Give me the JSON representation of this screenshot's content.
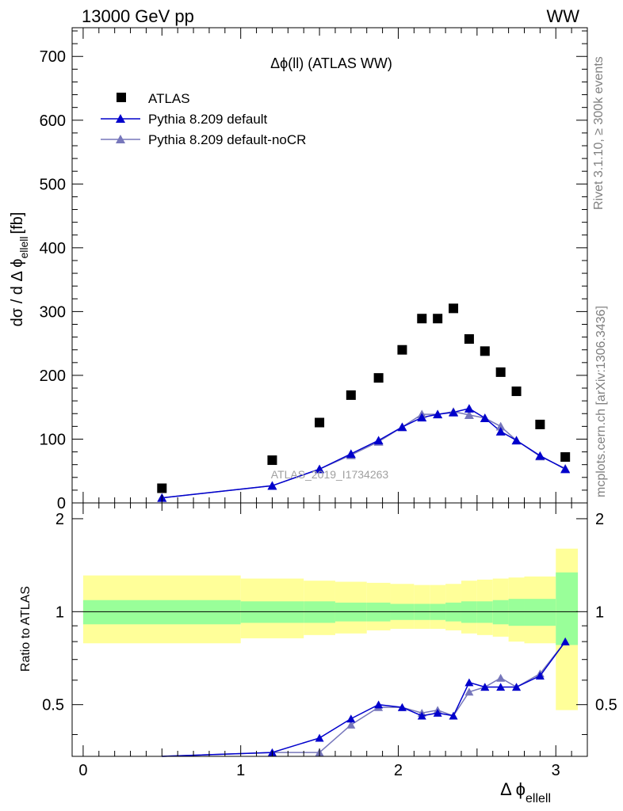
{
  "header": {
    "energy_label": "13000 GeV pp",
    "process_label": "WW",
    "side_label_top": "Rivet 3.1.10, ≥ 300k events",
    "side_label_bottom": "mcplots.cern.ch [arXiv:1306.3436]"
  },
  "colors": {
    "data": "#000000",
    "mc_default": "#0000cc",
    "mc_nocr": "#7777bb",
    "band_inner": "#99ff99",
    "band_outer": "#ffff99"
  },
  "chart_data": [
    {
      "type": "scatter",
      "title": "Δϕ(ll) (ATLAS WW)",
      "ylabel": "dσ / d Δ ϕ",
      "ylabel_sub": "ellell",
      "ylabel_unit": "[fb]",
      "xlim": [
        -0.07,
        3.2
      ],
      "ylim": [
        0,
        745
      ],
      "yticks": [
        0,
        100,
        200,
        300,
        400,
        500,
        600,
        700
      ],
      "watermark": "ATLAS_2019_I1734263",
      "legend_position": "top-left",
      "x": [
        0.5,
        1.2,
        1.5,
        1.7,
        1.875,
        2.025,
        2.15,
        2.25,
        2.35,
        2.45,
        2.55,
        2.65,
        2.75,
        2.9,
        3.06
      ],
      "series": [
        {
          "name": "ATLAS",
          "marker": "square",
          "values": [
            23,
            67,
            126,
            169,
            196,
            240,
            289,
            289,
            305,
            257,
            238,
            205,
            175,
            123,
            72
          ]
        },
        {
          "name": "Pythia 8.209 default",
          "marker": "triangle",
          "values": [
            8,
            27,
            53,
            77,
            98,
            119,
            134,
            139,
            142,
            148,
            133,
            112,
            98,
            74,
            53
          ]
        },
        {
          "name": "Pythia 8.209 default-noCR",
          "marker": "triangle",
          "values": [
            8,
            27,
            53,
            75,
            96,
            119,
            139,
            139,
            143,
            138,
            133,
            120,
            98,
            73,
            54
          ]
        }
      ]
    },
    {
      "type": "line",
      "ylabel": "Ratio to ATLAS",
      "xlabel": "Δ ϕ",
      "xlabel_sub": "ellell",
      "xlim": [
        -0.07,
        3.2
      ],
      "ylim": [
        0.34,
        2.25
      ],
      "xticks": [
        0,
        1,
        2,
        3
      ],
      "yticks": [
        0.5,
        1,
        2
      ],
      "bins": [
        [
          0,
          1
        ],
        [
          1,
          1.4
        ],
        [
          1.4,
          1.6
        ],
        [
          1.6,
          1.8
        ],
        [
          1.8,
          1.95
        ],
        [
          1.95,
          2.1
        ],
        [
          2.1,
          2.2
        ],
        [
          2.2,
          2.3
        ],
        [
          2.3,
          2.4
        ],
        [
          2.4,
          2.5
        ],
        [
          2.5,
          2.6
        ],
        [
          2.6,
          2.7
        ],
        [
          2.7,
          2.8
        ],
        [
          2.8,
          3.0
        ],
        [
          3.0,
          3.14
        ]
      ],
      "band_inner": [
        [
          0.91,
          1.09
        ],
        [
          0.92,
          1.08
        ],
        [
          0.92,
          1.08
        ],
        [
          0.93,
          1.07
        ],
        [
          0.93,
          1.07
        ],
        [
          0.94,
          1.06
        ],
        [
          0.94,
          1.06
        ],
        [
          0.94,
          1.06
        ],
        [
          0.93,
          1.07
        ],
        [
          0.92,
          1.08
        ],
        [
          0.92,
          1.08
        ],
        [
          0.91,
          1.09
        ],
        [
          0.9,
          1.1
        ],
        [
          0.9,
          1.1
        ],
        [
          0.78,
          1.34
        ]
      ],
      "band_outer": [
        [
          0.79,
          1.31
        ],
        [
          0.82,
          1.28
        ],
        [
          0.84,
          1.26
        ],
        [
          0.85,
          1.25
        ],
        [
          0.87,
          1.24
        ],
        [
          0.88,
          1.23
        ],
        [
          0.88,
          1.22
        ],
        [
          0.88,
          1.22
        ],
        [
          0.87,
          1.23
        ],
        [
          0.85,
          1.26
        ],
        [
          0.84,
          1.27
        ],
        [
          0.83,
          1.28
        ],
        [
          0.8,
          1.29
        ],
        [
          0.79,
          1.3
        ],
        [
          0.48,
          1.6
        ]
      ],
      "x": [
        0.5,
        1.2,
        1.5,
        1.7,
        1.875,
        2.025,
        2.15,
        2.25,
        2.35,
        2.45,
        2.55,
        2.65,
        2.75,
        2.9,
        3.06
      ],
      "series": [
        {
          "name": "Pythia 8.209 default",
          "values": [
            0.33,
            0.35,
            0.39,
            0.45,
            0.5,
            0.49,
            0.46,
            0.47,
            0.46,
            0.59,
            0.57,
            0.57,
            0.57,
            0.62,
            0.8
          ]
        },
        {
          "name": "Pythia 8.209 default-noCR",
          "values": [
            0.33,
            0.35,
            0.35,
            0.43,
            0.49,
            0.49,
            0.47,
            0.48,
            0.46,
            0.55,
            0.57,
            0.61,
            0.57,
            0.63,
            0.8
          ]
        }
      ]
    }
  ]
}
